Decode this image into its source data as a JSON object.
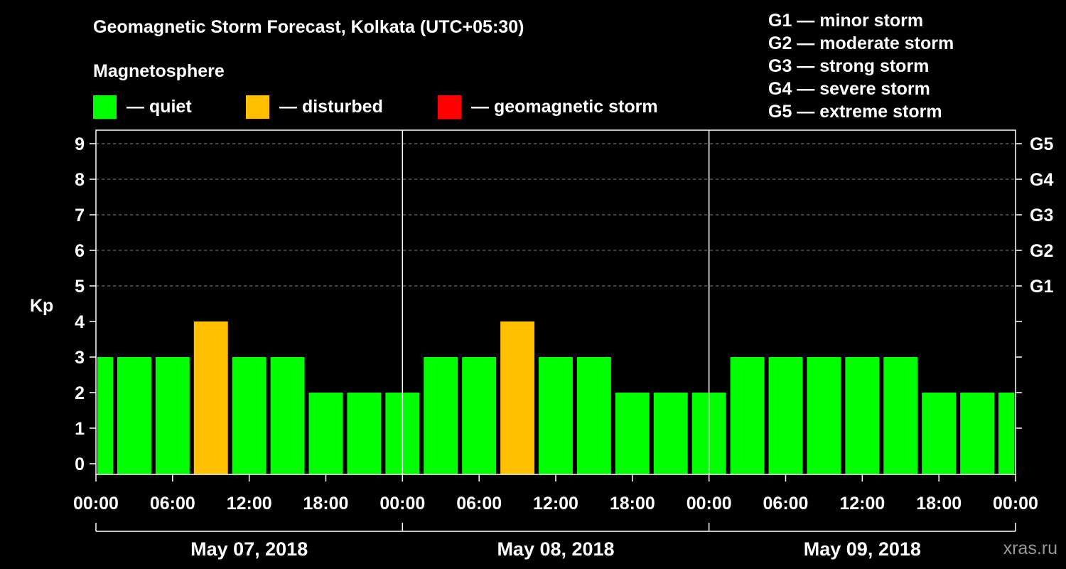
{
  "title": "Geomagnetic Storm Forecast, Kolkata (UTC+05:30)",
  "subtitle": "Magnetosphere",
  "legend": [
    {
      "label": "— quiet",
      "color": "#00ff00"
    },
    {
      "label": "— disturbed",
      "color": "#ffc000"
    },
    {
      "label": "— geomagnetic storm",
      "color": "#ff0000"
    }
  ],
  "g_scale": [
    "G1 — minor storm",
    "G2 — moderate storm",
    "G3 — strong storm",
    "G4 — severe storm",
    "G5 — extreme storm"
  ],
  "watermark": "xras.ru",
  "colors": {
    "quiet": "#00ff00",
    "disturbed": "#ffc000",
    "storm": "#ff0000",
    "grid": "#888888",
    "axis": "#ffffff"
  },
  "chart_data": {
    "type": "bar",
    "ylabel": "Kp",
    "ylim": [
      0,
      9
    ],
    "y_ticks": [
      "0",
      "1",
      "2",
      "3",
      "4",
      "5",
      "6",
      "7",
      "8",
      "9"
    ],
    "y2_ticks": [
      {
        "kp": 5,
        "label": "G1"
      },
      {
        "kp": 6,
        "label": "G2"
      },
      {
        "kp": 7,
        "label": "G3"
      },
      {
        "kp": 8,
        "label": "G4"
      },
      {
        "kp": 9,
        "label": "G5"
      }
    ],
    "grid_y": [
      5,
      6,
      7,
      8,
      9
    ],
    "x_range_hours": [
      0,
      72
    ],
    "x_ticks": [
      {
        "hour": 0,
        "label": "00:00"
      },
      {
        "hour": 6,
        "label": "06:00"
      },
      {
        "hour": 12,
        "label": "12:00"
      },
      {
        "hour": 18,
        "label": "18:00"
      },
      {
        "hour": 24,
        "label": "00:00"
      },
      {
        "hour": 30,
        "label": "06:00"
      },
      {
        "hour": 36,
        "label": "12:00"
      },
      {
        "hour": 42,
        "label": "18:00"
      },
      {
        "hour": 48,
        "label": "00:00"
      },
      {
        "hour": 54,
        "label": "06:00"
      },
      {
        "hour": 60,
        "label": "12:00"
      },
      {
        "hour": 66,
        "label": "18:00"
      },
      {
        "hour": 72,
        "label": "00:00"
      }
    ],
    "days": [
      {
        "label": "May 07, 2018",
        "start_hour": 0,
        "end_hour": 24
      },
      {
        "label": "May 08, 2018",
        "start_hour": 24,
        "end_hour": 48
      },
      {
        "label": "May 09, 2018",
        "start_hour": 48,
        "end_hour": 72
      }
    ],
    "day_separators_hours": [
      24,
      48
    ],
    "bars": [
      {
        "start_hour": 0,
        "end_hour": 1.5,
        "kp": 3,
        "level": "quiet"
      },
      {
        "start_hour": 1.5,
        "end_hour": 4.5,
        "kp": 3,
        "level": "quiet"
      },
      {
        "start_hour": 4.5,
        "end_hour": 7.5,
        "kp": 3,
        "level": "quiet"
      },
      {
        "start_hour": 7.5,
        "end_hour": 10.5,
        "kp": 4,
        "level": "disturbed"
      },
      {
        "start_hour": 10.5,
        "end_hour": 13.5,
        "kp": 3,
        "level": "quiet"
      },
      {
        "start_hour": 13.5,
        "end_hour": 16.5,
        "kp": 3,
        "level": "quiet"
      },
      {
        "start_hour": 16.5,
        "end_hour": 19.5,
        "kp": 2,
        "level": "quiet"
      },
      {
        "start_hour": 19.5,
        "end_hour": 22.5,
        "kp": 2,
        "level": "quiet"
      },
      {
        "start_hour": 22.5,
        "end_hour": 25.5,
        "kp": 2,
        "level": "quiet"
      },
      {
        "start_hour": 25.5,
        "end_hour": 28.5,
        "kp": 3,
        "level": "quiet"
      },
      {
        "start_hour": 28.5,
        "end_hour": 31.5,
        "kp": 3,
        "level": "quiet"
      },
      {
        "start_hour": 31.5,
        "end_hour": 34.5,
        "kp": 4,
        "level": "disturbed"
      },
      {
        "start_hour": 34.5,
        "end_hour": 37.5,
        "kp": 3,
        "level": "quiet"
      },
      {
        "start_hour": 37.5,
        "end_hour": 40.5,
        "kp": 3,
        "level": "quiet"
      },
      {
        "start_hour": 40.5,
        "end_hour": 43.5,
        "kp": 2,
        "level": "quiet"
      },
      {
        "start_hour": 43.5,
        "end_hour": 46.5,
        "kp": 2,
        "level": "quiet"
      },
      {
        "start_hour": 46.5,
        "end_hour": 49.5,
        "kp": 2,
        "level": "quiet"
      },
      {
        "start_hour": 49.5,
        "end_hour": 52.5,
        "kp": 3,
        "level": "quiet"
      },
      {
        "start_hour": 52.5,
        "end_hour": 55.5,
        "kp": 3,
        "level": "quiet"
      },
      {
        "start_hour": 55.5,
        "end_hour": 58.5,
        "kp": 3,
        "level": "quiet"
      },
      {
        "start_hour": 58.5,
        "end_hour": 61.5,
        "kp": 3,
        "level": "quiet"
      },
      {
        "start_hour": 61.5,
        "end_hour": 64.5,
        "kp": 3,
        "level": "quiet"
      },
      {
        "start_hour": 64.5,
        "end_hour": 67.5,
        "kp": 2,
        "level": "quiet"
      },
      {
        "start_hour": 67.5,
        "end_hour": 70.5,
        "kp": 2,
        "level": "quiet"
      },
      {
        "start_hour": 70.5,
        "end_hour": 72,
        "kp": 2,
        "level": "quiet"
      }
    ]
  }
}
